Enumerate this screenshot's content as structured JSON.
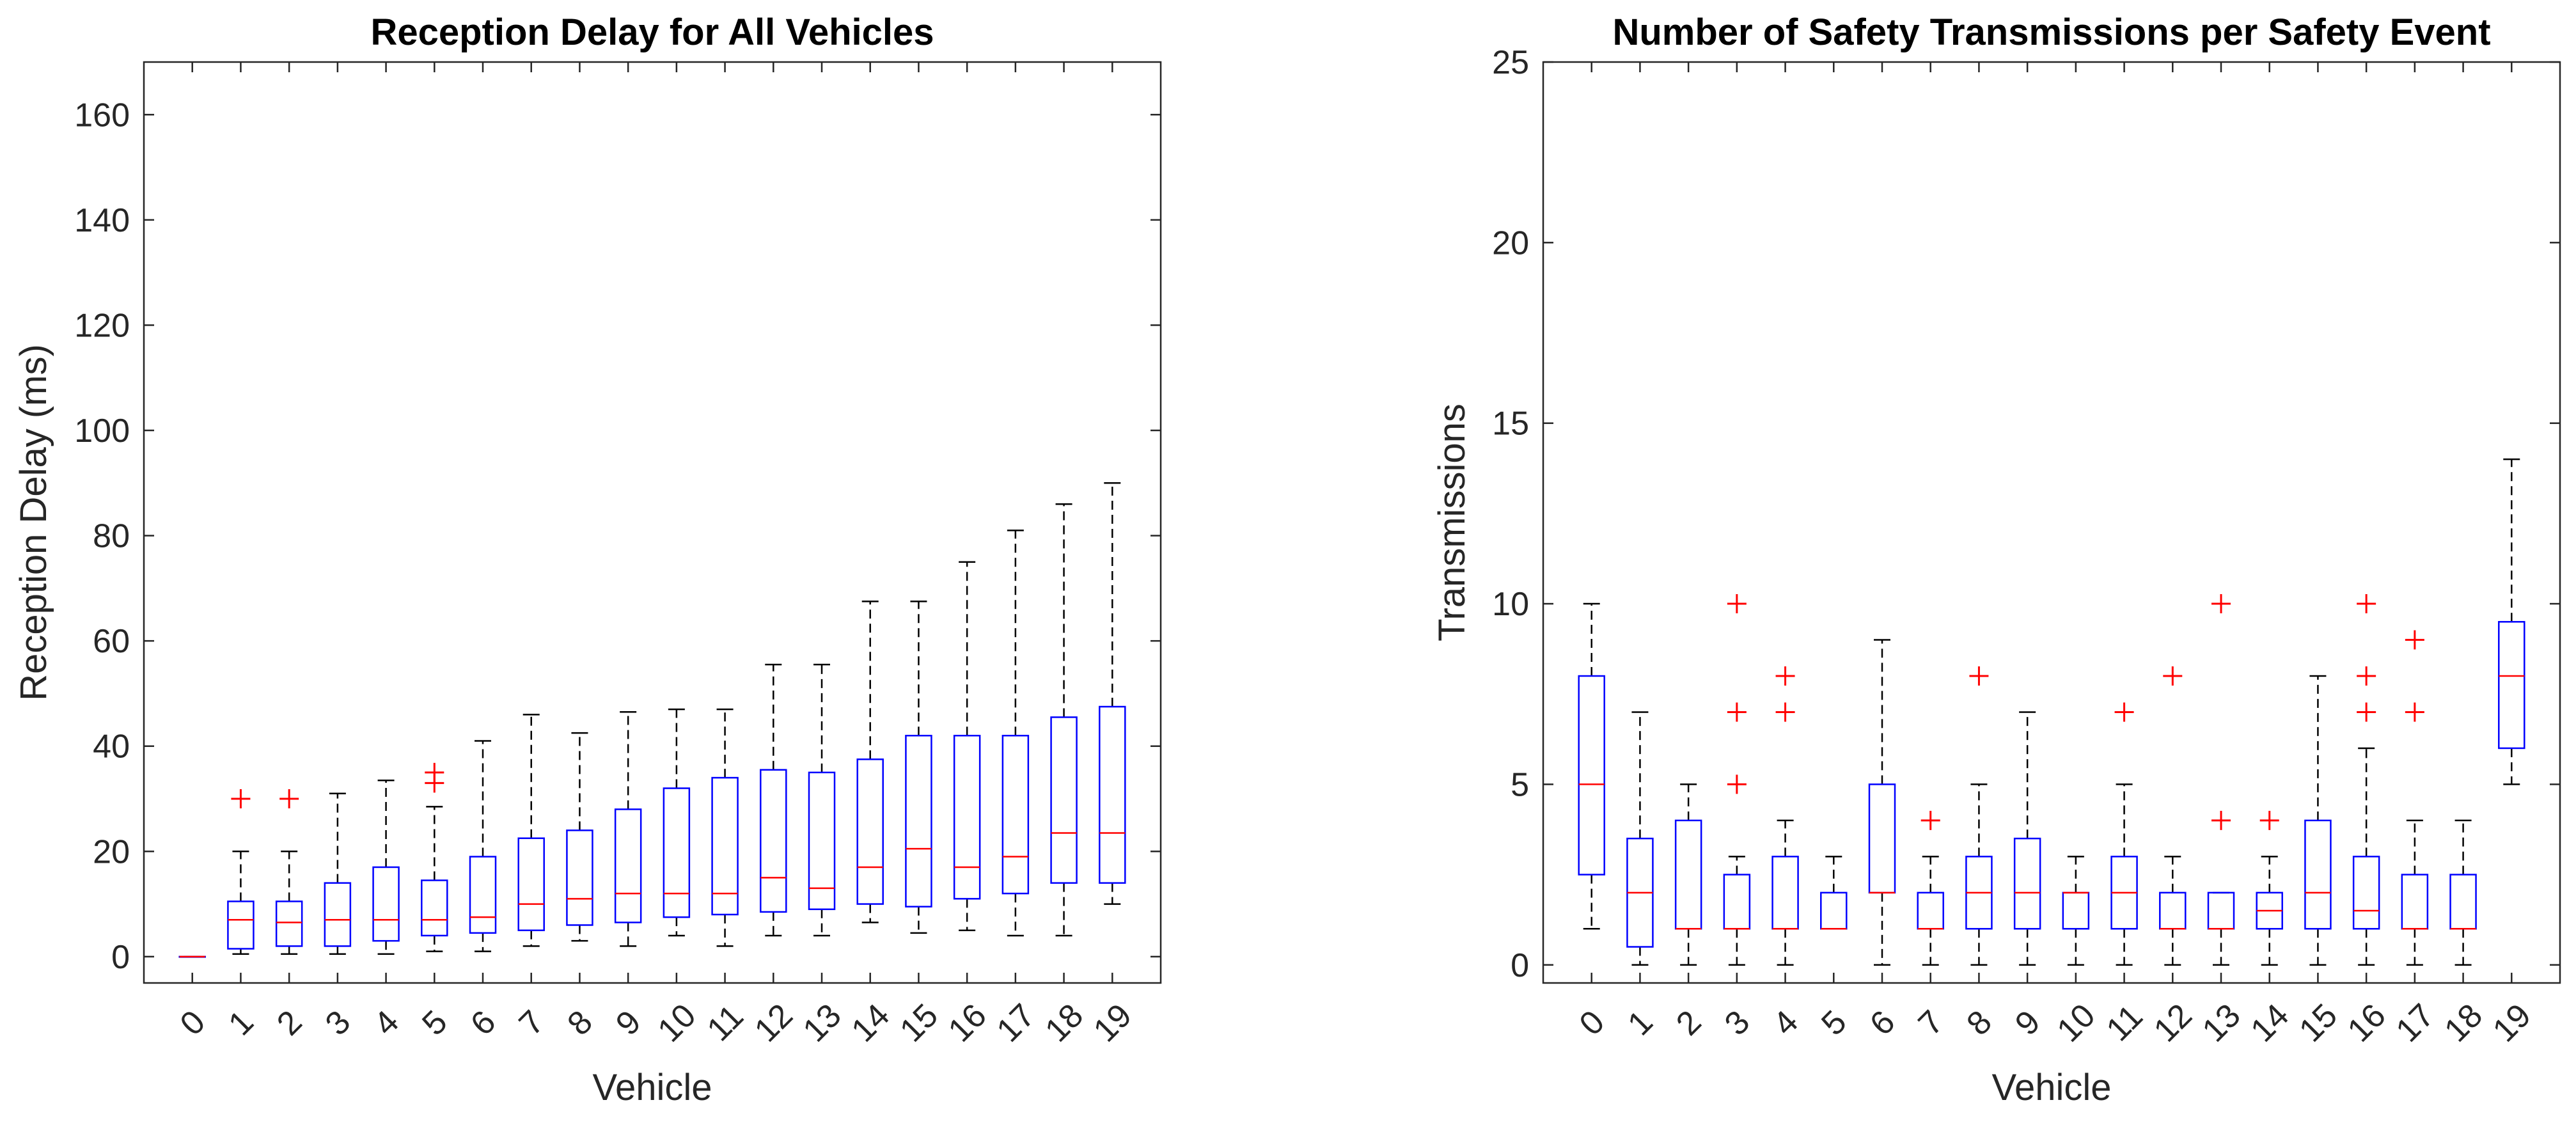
{
  "colors": {
    "box": "#0000ff",
    "median": "#ff0000",
    "outlier": "#ff0000",
    "whisker": "#000000",
    "axis": "#262626"
  },
  "chart_data": [
    {
      "type": "boxplot",
      "title": "Reception Delay for All Vehicles",
      "xlabel": "Vehicle",
      "ylabel": "Reception Delay (ms)",
      "ylim": [
        -5,
        170
      ],
      "yticks": [
        "0",
        "20",
        "40",
        "60",
        "80",
        "100",
        "120",
        "140",
        "160"
      ],
      "categories": [
        "0",
        "1",
        "2",
        "3",
        "4",
        "5",
        "6",
        "7",
        "8",
        "9",
        "10",
        "11",
        "12",
        "13",
        "14",
        "15",
        "16",
        "17",
        "18",
        "19"
      ],
      "boxes": [
        {
          "min": 0,
          "q1": 0,
          "median": 0,
          "q3": 0,
          "max": 0,
          "outliers": []
        },
        {
          "min": 0.5,
          "q1": 1.5,
          "median": 7,
          "q3": 10.5,
          "max": 20,
          "outliers": [
            30
          ]
        },
        {
          "min": 0.5,
          "q1": 2,
          "median": 6.5,
          "q3": 10.5,
          "max": 20,
          "outliers": [
            30
          ]
        },
        {
          "min": 0.5,
          "q1": 2,
          "median": 7,
          "q3": 14,
          "max": 31,
          "outliers": []
        },
        {
          "min": 0.5,
          "q1": 3,
          "median": 7,
          "q3": 17,
          "max": 33.5,
          "outliers": []
        },
        {
          "min": 1,
          "q1": 4,
          "median": 7,
          "q3": 14.5,
          "max": 28.5,
          "outliers": [
            33,
            35
          ]
        },
        {
          "min": 1,
          "q1": 4.5,
          "median": 7.5,
          "q3": 19,
          "max": 41,
          "outliers": []
        },
        {
          "min": 2,
          "q1": 5,
          "median": 10,
          "q3": 22.5,
          "max": 46,
          "outliers": []
        },
        {
          "min": 3,
          "q1": 6,
          "median": 11,
          "q3": 24,
          "max": 42.5,
          "outliers": []
        },
        {
          "min": 2,
          "q1": 6.5,
          "median": 12,
          "q3": 28,
          "max": 46.5,
          "outliers": []
        },
        {
          "min": 4,
          "q1": 7.5,
          "median": 12,
          "q3": 32,
          "max": 47,
          "outliers": []
        },
        {
          "min": 2,
          "q1": 8,
          "median": 12,
          "q3": 34,
          "max": 47,
          "outliers": []
        },
        {
          "min": 4,
          "q1": 8.5,
          "median": 15,
          "q3": 35.5,
          "max": 55.5,
          "outliers": []
        },
        {
          "min": 4,
          "q1": 9,
          "median": 13,
          "q3": 35,
          "max": 55.5,
          "outliers": []
        },
        {
          "min": 6.5,
          "q1": 10,
          "median": 17,
          "q3": 37.5,
          "max": 67.5,
          "outliers": []
        },
        {
          "min": 4.5,
          "q1": 9.5,
          "median": 20.5,
          "q3": 42,
          "max": 67.5,
          "outliers": []
        },
        {
          "min": 5,
          "q1": 11,
          "median": 17,
          "q3": 42,
          "max": 75,
          "outliers": []
        },
        {
          "min": 4,
          "q1": 12,
          "median": 19,
          "q3": 42,
          "max": 81,
          "outliers": []
        },
        {
          "min": 4,
          "q1": 14,
          "median": 23.5,
          "q3": 45.5,
          "max": 86,
          "outliers": []
        },
        {
          "min": 10,
          "q1": 14,
          "median": 23.5,
          "q3": 47.5,
          "max": 90,
          "outliers": []
        }
      ]
    },
    {
      "type": "boxplot",
      "title": "Number of Safety Transmissions per Safety Event",
      "xlabel": "Vehicle",
      "ylabel": "Transmissions",
      "ylim": [
        -0.5,
        25
      ],
      "yticks": [
        "0",
        "5",
        "10",
        "15",
        "20",
        "25"
      ],
      "categories": [
        "0",
        "1",
        "2",
        "3",
        "4",
        "5",
        "6",
        "7",
        "8",
        "9",
        "10",
        "11",
        "12",
        "13",
        "14",
        "15",
        "16",
        "17",
        "18",
        "19"
      ],
      "boxes": [
        {
          "min": 1,
          "q1": 2.5,
          "median": 5,
          "q3": 8,
          "max": 10,
          "outliers": []
        },
        {
          "min": 0,
          "q1": 0.5,
          "median": 2,
          "q3": 3.5,
          "max": 7,
          "outliers": []
        },
        {
          "min": 0,
          "q1": 1,
          "median": 1,
          "q3": 4,
          "max": 5,
          "outliers": []
        },
        {
          "min": 0,
          "q1": 1,
          "median": 1,
          "q3": 2.5,
          "max": 3,
          "outliers": [
            5,
            7,
            10
          ]
        },
        {
          "min": 0,
          "q1": 1,
          "median": 1,
          "q3": 3,
          "max": 4,
          "outliers": [
            7,
            8
          ]
        },
        {
          "min": 1,
          "q1": 1,
          "median": 1,
          "q3": 2,
          "max": 3,
          "outliers": []
        },
        {
          "min": 0,
          "q1": 2,
          "median": 2,
          "q3": 5,
          "max": 9,
          "outliers": []
        },
        {
          "min": 0,
          "q1": 1,
          "median": 1,
          "q3": 2,
          "max": 3,
          "outliers": [
            4
          ]
        },
        {
          "min": 0,
          "q1": 1,
          "median": 2,
          "q3": 3,
          "max": 5,
          "outliers": [
            8
          ]
        },
        {
          "min": 0,
          "q1": 1,
          "median": 2,
          "q3": 3.5,
          "max": 7,
          "outliers": []
        },
        {
          "min": 0,
          "q1": 1,
          "median": 2,
          "q3": 2,
          "max": 3,
          "outliers": []
        },
        {
          "min": 0,
          "q1": 1,
          "median": 2,
          "q3": 3,
          "max": 5,
          "outliers": [
            7
          ]
        },
        {
          "min": 0,
          "q1": 1,
          "median": 1,
          "q3": 2,
          "max": 3,
          "outliers": [
            8
          ]
        },
        {
          "min": 0,
          "q1": 1,
          "median": 1,
          "q3": 2,
          "max": 2,
          "outliers": [
            4,
            10
          ]
        },
        {
          "min": 0,
          "q1": 1,
          "median": 1.5,
          "q3": 2,
          "max": 3,
          "outliers": [
            4
          ]
        },
        {
          "min": 0,
          "q1": 1,
          "median": 2,
          "q3": 4,
          "max": 8,
          "outliers": []
        },
        {
          "min": 0,
          "q1": 1,
          "median": 1.5,
          "q3": 3,
          "max": 6,
          "outliers": [
            7,
            8,
            10
          ]
        },
        {
          "min": 0,
          "q1": 1,
          "median": 1,
          "q3": 2.5,
          "max": 4,
          "outliers": [
            7,
            9
          ]
        },
        {
          "min": 0,
          "q1": 1,
          "median": 1,
          "q3": 2.5,
          "max": 4,
          "outliers": []
        },
        {
          "min": 5,
          "q1": 6,
          "median": 8,
          "q3": 9.5,
          "max": 14,
          "outliers": []
        }
      ]
    }
  ]
}
